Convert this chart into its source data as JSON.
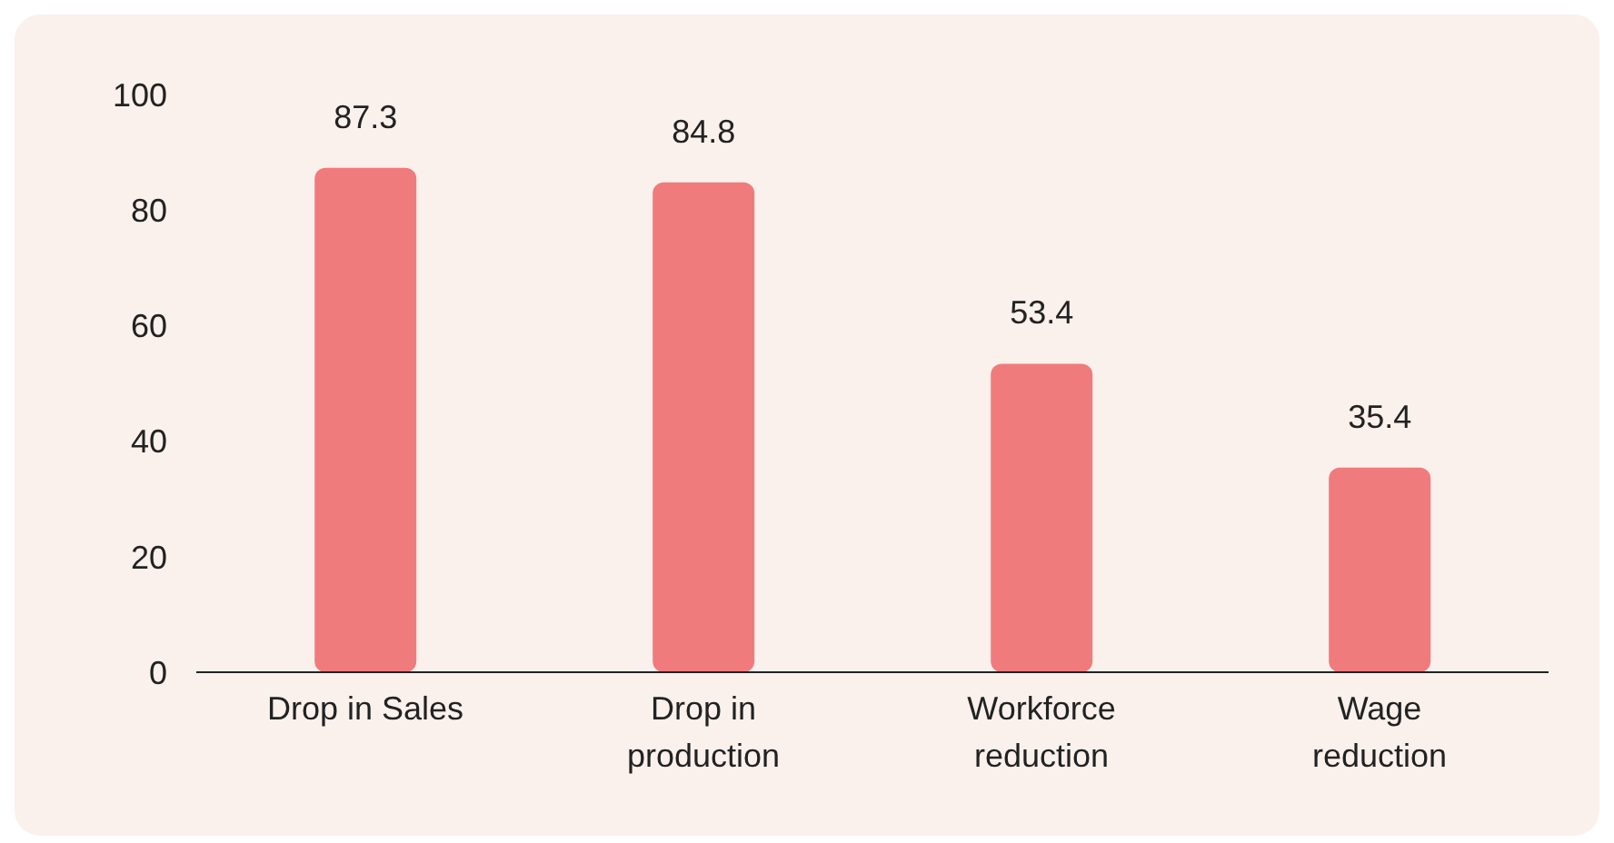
{
  "chart_data": {
    "type": "bar",
    "categories": [
      "Drop in Sales",
      "Drop in production",
      "Workforce reduction",
      "Wage reduction"
    ],
    "values": [
      87.3,
      84.8,
      53.4,
      35.4
    ],
    "color": "#f07b7d",
    "ylim": [
      0,
      100
    ],
    "yticks": [
      0,
      20,
      40,
      60,
      80,
      100
    ],
    "grid": false,
    "data_labels": true
  }
}
